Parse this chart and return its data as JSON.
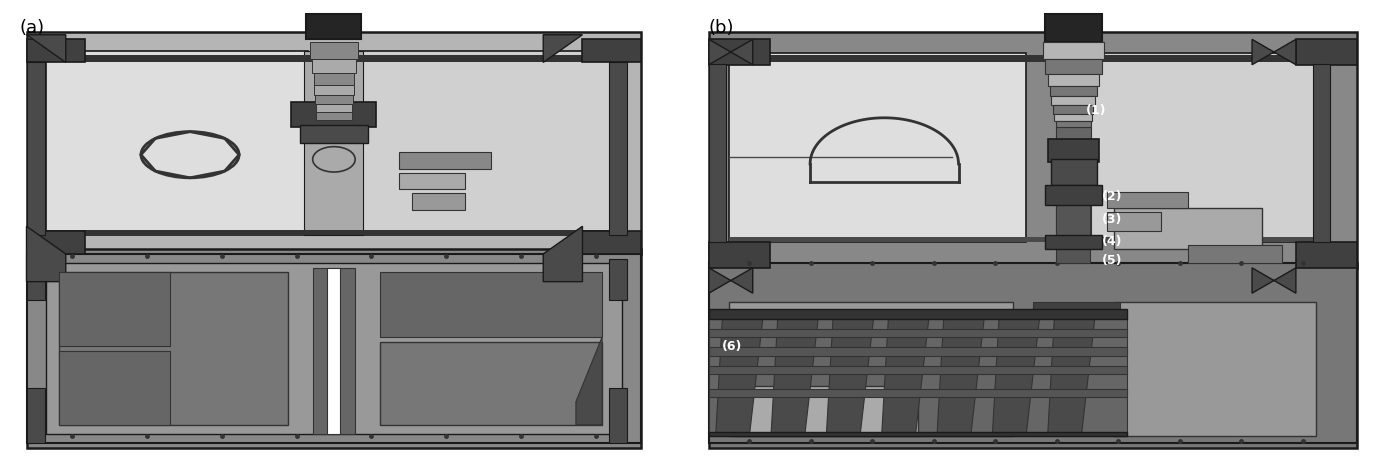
{
  "figsize": [
    13.77,
    4.71
  ],
  "dpi": 100,
  "background_color": "#ffffff",
  "label_a": "(a)",
  "label_b": "(b)",
  "ann_1": "(1)",
  "ann_2": "(2)",
  "ann_3": "(3)",
  "ann_4": "(4)",
  "ann_5": "(5)",
  "ann_6": "(6)",
  "c_white": "#ffffff",
  "c_near_black": "#1a1a1a",
  "c_very_dark": "#252525",
  "c_dark": "#333333",
  "c_dark2": "#404040",
  "c_dark3": "#4a4a4a",
  "c_mid_dark": "#555555",
  "c_mid": "#666666",
  "c_mid2": "#777777",
  "c_mid_light": "#888888",
  "c_light": "#999999",
  "c_light2": "#aaaaaa",
  "c_light3": "#b5b5b5",
  "c_lighter": "#c0c0c0",
  "c_lightest": "#d0d0d0",
  "c_very_light": "#dedede",
  "c_bg_light": "#e8e8e8"
}
